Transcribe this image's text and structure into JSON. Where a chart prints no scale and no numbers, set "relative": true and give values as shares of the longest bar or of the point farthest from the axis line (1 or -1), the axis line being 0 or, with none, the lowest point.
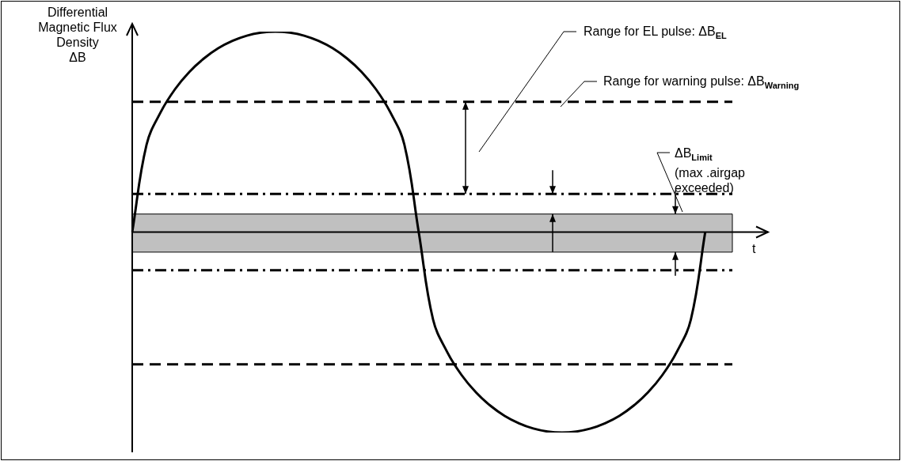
{
  "chart_data": {
    "type": "line",
    "relative": true,
    "xlabel": "t",
    "ylabel": "Differential\nMagnetic Flux\nDensity\nΔB",
    "categories": [
      null,
      null,
      null,
      null,
      null,
      null,
      null,
      null,
      null,
      null,
      null,
      null,
      null,
      null,
      null,
      null,
      null,
      null,
      null,
      null,
      null,
      null,
      null,
      null,
      null,
      null,
      null,
      null,
      null,
      null,
      null,
      null,
      null,
      null,
      null,
      null,
      null,
      null,
      null,
      null,
      null,
      null,
      null,
      null
    ],
    "series": [
      {
        "color": "#000000",
        "values": [
          0,
          0.436,
          0.6,
          0.714,
          0.8,
          0.866,
          0.917,
          0.954,
          0.98,
          0.995,
          1,
          0.995,
          0.98,
          0.954,
          0.917,
          0.866,
          0.8,
          0.714,
          0.6,
          0.436,
          0,
          -0.436,
          -0.6,
          -0.714,
          -0.8,
          -0.866,
          -0.917,
          -0.954,
          -0.98,
          -0.995,
          -1,
          -0.995,
          -0.98,
          -0.954,
          -0.917,
          -0.866,
          -0.8,
          -0.714,
          -0.6,
          -0.436,
          0,
          null,
          null,
          null
        ]
      }
    ],
    "marker": "none",
    "line_style": "solid",
    "legend": false,
    "ref_lines": [
      {
        "axis": "y",
        "value": 0.65,
        "color": "#000000",
        "line_style": "dashed"
      },
      {
        "axis": "y",
        "value": 0.19,
        "color": "#000000",
        "line_style": "dashdot"
      },
      {
        "axis": "y",
        "value": -0.19,
        "color": "#000000",
        "line_style": "dashdot"
      },
      {
        "axis": "y",
        "value": -0.66,
        "color": "#000000",
        "line_style": "dashed"
      }
    ],
    "bands": [
      {
        "axis": "y",
        "from": -0.1,
        "to": 0.09,
        "color": "#c0c0c0"
      }
    ],
    "annotations": [
      "Range for EL pulse: ΔB$_{EL}$",
      "Range for warning pulse: ΔB$_{Warning}$",
      "ΔB$_{Limit}$\n(max .airgap\nexceeded)"
    ]
  }
}
